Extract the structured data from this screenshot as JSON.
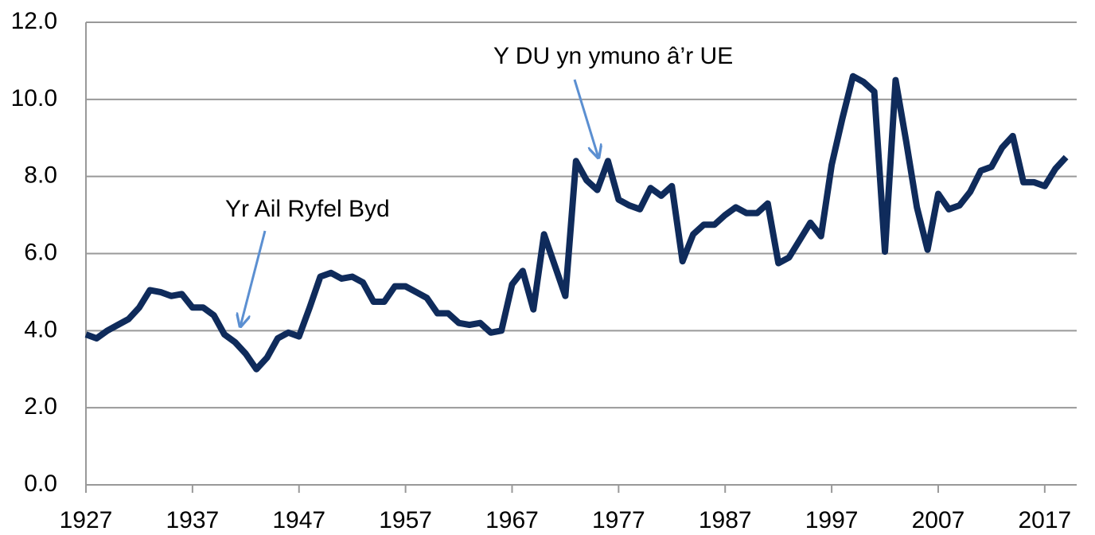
{
  "chart_data": {
    "type": "line",
    "x": [
      1927,
      1928,
      1929,
      1930,
      1931,
      1932,
      1933,
      1934,
      1935,
      1936,
      1937,
      1938,
      1939,
      1940,
      1941,
      1942,
      1943,
      1944,
      1945,
      1946,
      1947,
      1948,
      1949,
      1950,
      1951,
      1952,
      1953,
      1954,
      1955,
      1956,
      1957,
      1958,
      1959,
      1960,
      1961,
      1962,
      1963,
      1964,
      1965,
      1966,
      1967,
      1968,
      1969,
      1970,
      1971,
      1972,
      1973,
      1974,
      1975,
      1976,
      1977,
      1978,
      1979,
      1980,
      1981,
      1982,
      1983,
      1984,
      1985,
      1986,
      1987,
      1988,
      1989,
      1990,
      1991,
      1992,
      1993,
      1994,
      1995,
      1996,
      1997,
      1998,
      1999,
      2000,
      2001,
      2002,
      2003,
      2004,
      2005,
      2006,
      2007,
      2008,
      2009,
      2010,
      2011,
      2012,
      2013,
      2014,
      2015,
      2016,
      2017,
      2018,
      2019
    ],
    "series": [
      {
        "color": "#0f2b5b",
        "values": [
          3.9,
          3.8,
          4.0,
          4.15,
          4.3,
          4.6,
          5.05,
          5.0,
          4.9,
          4.95,
          4.6,
          4.6,
          4.4,
          3.9,
          3.7,
          3.4,
          3.0,
          3.3,
          3.8,
          3.95,
          3.85,
          4.6,
          5.4,
          5.5,
          5.35,
          5.4,
          5.25,
          4.75,
          4.75,
          5.15,
          5.15,
          5.0,
          4.85,
          4.45,
          4.45,
          4.2,
          4.15,
          4.2,
          3.95,
          4.0,
          5.2,
          5.55,
          4.55,
          6.5,
          5.7,
          4.9,
          8.4,
          7.9,
          7.65,
          8.4,
          7.4,
          7.25,
          7.15,
          7.7,
          7.5,
          7.75,
          5.8,
          6.5,
          6.75,
          6.75,
          7.0,
          7.2,
          7.05,
          7.05,
          7.3,
          5.75,
          5.9,
          6.35,
          6.8,
          6.45,
          8.3,
          9.5,
          10.6,
          10.45,
          10.2,
          6.05,
          10.5,
          8.9,
          7.2,
          6.1,
          7.55,
          7.15,
          7.25,
          7.6,
          8.15,
          8.25,
          8.75,
          9.05,
          7.85,
          7.85,
          7.75,
          8.2,
          8.5
        ]
      }
    ],
    "xlim": [
      1927,
      2020
    ],
    "xticks": [
      1927,
      1937,
      1947,
      1957,
      1967,
      1977,
      1987,
      1997,
      2007,
      2017
    ],
    "ylim": [
      0,
      12
    ],
    "yticks": [
      {
        "value": 0,
        "label": "0.0"
      },
      {
        "value": 2,
        "label": "2.0"
      },
      {
        "value": 4,
        "label": "4.0"
      },
      {
        "value": 6,
        "label": "6.0"
      },
      {
        "value": 8,
        "label": "8.0"
      },
      {
        "value": 10,
        "label": "10.0"
      },
      {
        "value": 12,
        "label": "12.0"
      }
    ],
    "grid": true,
    "annotations": [
      {
        "text": "Yr Ail Ryfel Byd"
      },
      {
        "text": "Y DU yn ymuno â’r UE"
      }
    ]
  }
}
